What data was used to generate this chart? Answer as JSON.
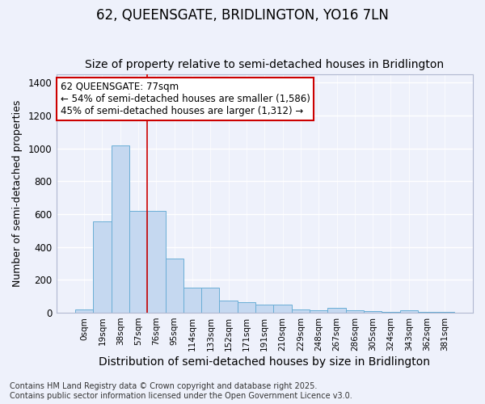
{
  "title": "62, QUEENSGATE, BRIDLINGTON, YO16 7LN",
  "subtitle": "Size of property relative to semi-detached houses in Bridlington",
  "xlabel": "Distribution of semi-detached houses by size in Bridlington",
  "ylabel": "Number of semi-detached properties",
  "bar_labels": [
    "0sqm",
    "19sqm",
    "38sqm",
    "57sqm",
    "76sqm",
    "95sqm",
    "114sqm",
    "133sqm",
    "152sqm",
    "171sqm",
    "191sqm",
    "210sqm",
    "229sqm",
    "248sqm",
    "267sqm",
    "286sqm",
    "305sqm",
    "324sqm",
    "343sqm",
    "362sqm",
    "381sqm"
  ],
  "bar_values": [
    20,
    555,
    1020,
    620,
    620,
    330,
    155,
    155,
    75,
    65,
    50,
    50,
    20,
    15,
    30,
    15,
    10,
    5,
    15,
    5,
    5
  ],
  "bar_color": "#c5d8f0",
  "bar_edge_color": "#6aaed6",
  "vline_x": 3.5,
  "vline_color": "#cc0000",
  "annotation_text": "62 QUEENSGATE: 77sqm\n← 54% of semi-detached houses are smaller (1,586)\n45% of semi-detached houses are larger (1,312) →",
  "annotation_box_color": "white",
  "annotation_box_edge_color": "#cc0000",
  "ylim": [
    0,
    1450
  ],
  "yticks": [
    0,
    200,
    400,
    600,
    800,
    1000,
    1200,
    1400
  ],
  "background_color": "#eef1fb",
  "grid_color": "#ffffff",
  "footer": "Contains HM Land Registry data © Crown copyright and database right 2025.\nContains public sector information licensed under the Open Government Licence v3.0.",
  "title_fontsize": 12,
  "subtitle_fontsize": 10,
  "xlabel_fontsize": 10,
  "ylabel_fontsize": 9,
  "annotation_fontsize": 8.5,
  "footer_fontsize": 7,
  "tick_fontsize": 7.5,
  "ytick_fontsize": 8.5
}
